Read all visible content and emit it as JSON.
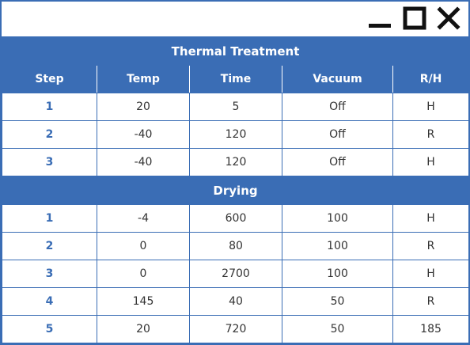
{
  "window": {
    "controls": [
      "minimize-icon",
      "maximize-icon",
      "close-icon"
    ],
    "accent_color": "#3a6db5"
  },
  "table": {
    "headers": [
      "Step",
      "Temp",
      "Time",
      "Vacuum",
      "R/H"
    ],
    "sections": [
      {
        "title": "Thermal Treatment",
        "rows": [
          [
            "1",
            "20",
            "5",
            "Off",
            "H"
          ],
          [
            "2",
            "-40",
            "120",
            "Off",
            "R"
          ],
          [
            "3",
            "-40",
            "120",
            "Off",
            "H"
          ]
        ]
      },
      {
        "title": "Drying",
        "rows": [
          [
            "1",
            "-4",
            "600",
            "100",
            "H"
          ],
          [
            "2",
            "0",
            "80",
            "100",
            "R"
          ],
          [
            "3",
            "0",
            "2700",
            "100",
            "H"
          ],
          [
            "4",
            "145",
            "40",
            "50",
            "R"
          ],
          [
            "5",
            "20",
            "720",
            "50",
            "185"
          ]
        ]
      }
    ]
  }
}
